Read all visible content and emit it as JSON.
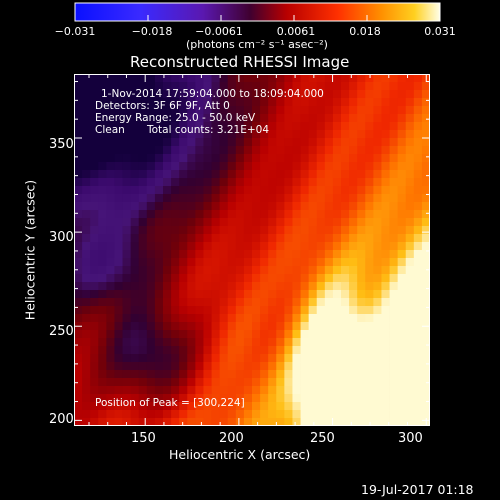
{
  "chart_data": {
    "type": "heatmap",
    "title": "Reconstructed RHESSI Image",
    "xlabel": "Heliocentric X (arcsec)",
    "ylabel": "Heliocentric Y (arcsec)",
    "xlim": [
      112,
      302
    ],
    "ylim": [
      197,
      384
    ],
    "x_ticks": [
      150,
      200,
      250,
      300
    ],
    "y_ticks": [
      200,
      250,
      300,
      350
    ],
    "colorbar": {
      "ticks": [
        "−0.031",
        "−0.018",
        "−0.0061",
        "0.0061",
        "0.018",
        "0.031"
      ],
      "range": [
        -0.031,
        0.031
      ],
      "unit": "(photons cm⁻² s⁻¹ asec⁻²)"
    },
    "annotations": {
      "time_range": "1-Nov-2014 17:59:04.000 to 18:09:04.000",
      "detectors": "Detectors: 3F 6F 9F, Att 0",
      "energy_range": "Energy Range: 25.0 - 50.0 keV",
      "clean": "Clean",
      "total_counts": "Total counts: 3.21E+04",
      "peak": "Position of Peak = [300,224]"
    },
    "peak": [
      300,
      224
    ],
    "grid": false
  },
  "footer": {
    "date": "19-Jul-2017 01:18"
  }
}
